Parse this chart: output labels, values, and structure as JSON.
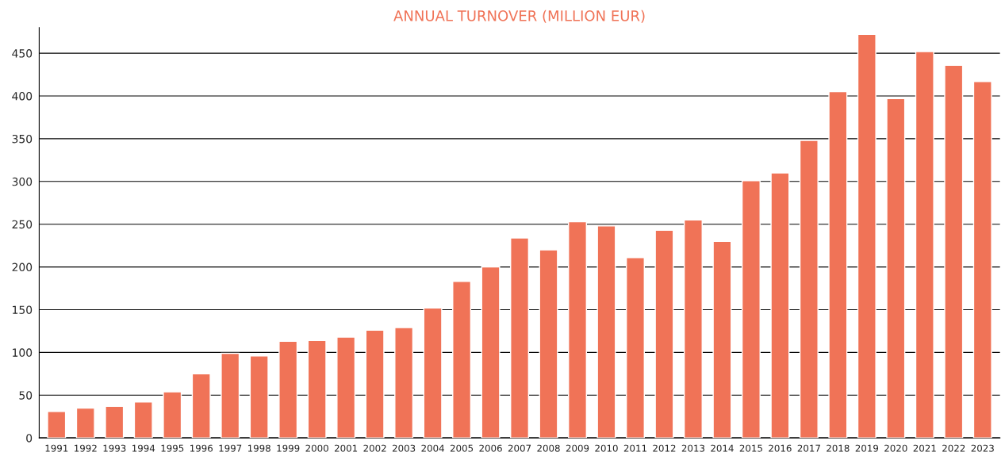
{
  "chart_data": {
    "type": "bar",
    "title": "ANNUAL TURNOVER (MILLION EUR)",
    "categories": [
      "1991",
      "1992",
      "1993",
      "1994",
      "1995",
      "1996",
      "1997",
      "1998",
      "1999",
      "2000",
      "2001",
      "2002",
      "2003",
      "2004",
      "2005",
      "2006",
      "2007",
      "2008",
      "2009",
      "2010",
      "2011",
      "2012",
      "2013",
      "2014",
      "2015",
      "2016",
      "2017",
      "2018",
      "2019",
      "2020",
      "2021",
      "2022",
      "2023"
    ],
    "values": [
      31,
      35,
      37,
      42,
      54,
      75,
      99,
      96,
      113,
      114,
      118,
      126,
      129,
      152,
      183,
      200,
      234,
      220,
      253,
      248,
      211,
      243,
      255,
      230,
      301,
      310,
      348,
      405,
      472,
      397,
      452,
      436,
      417
    ],
    "color": "#f07357",
    "ylim": [
      0,
      480
    ],
    "yticks": [
      0,
      50,
      100,
      150,
      200,
      250,
      300,
      350,
      400,
      450
    ],
    "grid": "y"
  }
}
